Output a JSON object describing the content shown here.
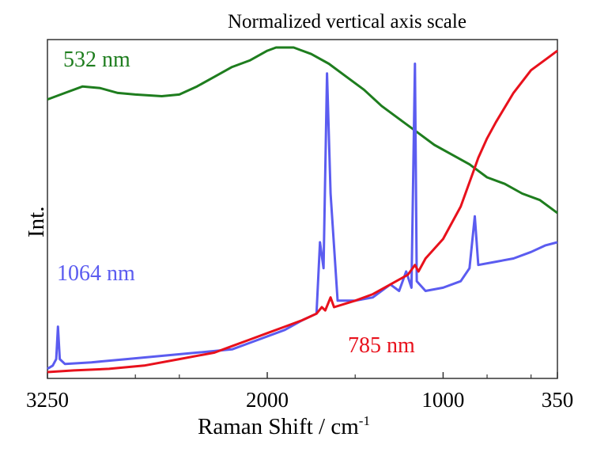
{
  "chart_data": {
    "type": "line",
    "title": "",
    "subtitle": "Normalized vertical axis scale",
    "xlabel": "Raman Shift / cm",
    "xlabel_superscript": "-1",
    "ylabel": "Int.",
    "x_reversed": true,
    "xlim": [
      3250,
      350
    ],
    "ylim": [
      0,
      1
    ],
    "x_ticks": [
      3250,
      2000,
      1000,
      350
    ],
    "y_ticks": [],
    "grid": false,
    "series": [
      {
        "name": "532 nm",
        "color": "#1e7d1e",
        "points": [
          [
            3250,
            0.84
          ],
          [
            3150,
            0.86
          ],
          [
            3050,
            0.88
          ],
          [
            2950,
            0.875
          ],
          [
            2850,
            0.86
          ],
          [
            2750,
            0.855
          ],
          [
            2600,
            0.85
          ],
          [
            2500,
            0.855
          ],
          [
            2400,
            0.88
          ],
          [
            2300,
            0.91
          ],
          [
            2200,
            0.94
          ],
          [
            2100,
            0.96
          ],
          [
            2000,
            0.99
          ],
          [
            1950,
            1.0
          ],
          [
            1850,
            1.0
          ],
          [
            1750,
            0.98
          ],
          [
            1650,
            0.95
          ],
          [
            1550,
            0.91
          ],
          [
            1450,
            0.87
          ],
          [
            1350,
            0.82
          ],
          [
            1250,
            0.78
          ],
          [
            1150,
            0.74
          ],
          [
            1050,
            0.7
          ],
          [
            950,
            0.67
          ],
          [
            850,
            0.64
          ],
          [
            750,
            0.6
          ],
          [
            650,
            0.58
          ],
          [
            550,
            0.55
          ],
          [
            450,
            0.53
          ],
          [
            350,
            0.49
          ]
        ]
      },
      {
        "name": "1064 nm",
        "color": "#5b5cf0",
        "points": [
          [
            3250,
            0.01
          ],
          [
            3220,
            0.02
          ],
          [
            3200,
            0.04
          ],
          [
            3190,
            0.14
          ],
          [
            3180,
            0.04
          ],
          [
            3150,
            0.025
          ],
          [
            3000,
            0.03
          ],
          [
            2800,
            0.04
          ],
          [
            2600,
            0.05
          ],
          [
            2400,
            0.06
          ],
          [
            2200,
            0.07
          ],
          [
            2100,
            0.09
          ],
          [
            1900,
            0.13
          ],
          [
            1800,
            0.16
          ],
          [
            1720,
            0.18
          ],
          [
            1700,
            0.4
          ],
          [
            1680,
            0.32
          ],
          [
            1660,
            0.92
          ],
          [
            1640,
            0.55
          ],
          [
            1600,
            0.22
          ],
          [
            1500,
            0.22
          ],
          [
            1400,
            0.23
          ],
          [
            1300,
            0.27
          ],
          [
            1250,
            0.25
          ],
          [
            1210,
            0.31
          ],
          [
            1180,
            0.26
          ],
          [
            1160,
            0.95
          ],
          [
            1150,
            0.28
          ],
          [
            1100,
            0.25
          ],
          [
            1000,
            0.26
          ],
          [
            900,
            0.28
          ],
          [
            850,
            0.32
          ],
          [
            820,
            0.48
          ],
          [
            800,
            0.33
          ],
          [
            700,
            0.34
          ],
          [
            600,
            0.35
          ],
          [
            500,
            0.37
          ],
          [
            420,
            0.39
          ],
          [
            350,
            0.4
          ]
        ]
      },
      {
        "name": "785 nm",
        "color": "#e8111c",
        "points": [
          [
            3250,
            0.0
          ],
          [
            3100,
            0.005
          ],
          [
            2900,
            0.01
          ],
          [
            2700,
            0.02
          ],
          [
            2500,
            0.04
          ],
          [
            2300,
            0.06
          ],
          [
            2200,
            0.08
          ],
          [
            2100,
            0.1
          ],
          [
            2000,
            0.12
          ],
          [
            1900,
            0.14
          ],
          [
            1800,
            0.16
          ],
          [
            1720,
            0.18
          ],
          [
            1690,
            0.2
          ],
          [
            1670,
            0.19
          ],
          [
            1640,
            0.23
          ],
          [
            1620,
            0.2
          ],
          [
            1500,
            0.22
          ],
          [
            1400,
            0.24
          ],
          [
            1300,
            0.27
          ],
          [
            1200,
            0.3
          ],
          [
            1160,
            0.33
          ],
          [
            1140,
            0.31
          ],
          [
            1100,
            0.35
          ],
          [
            1000,
            0.41
          ],
          [
            900,
            0.51
          ],
          [
            820,
            0.63
          ],
          [
            800,
            0.66
          ],
          [
            750,
            0.72
          ],
          [
            700,
            0.77
          ],
          [
            600,
            0.86
          ],
          [
            500,
            0.93
          ],
          [
            400,
            0.97
          ],
          [
            350,
            0.99
          ]
        ]
      }
    ]
  }
}
